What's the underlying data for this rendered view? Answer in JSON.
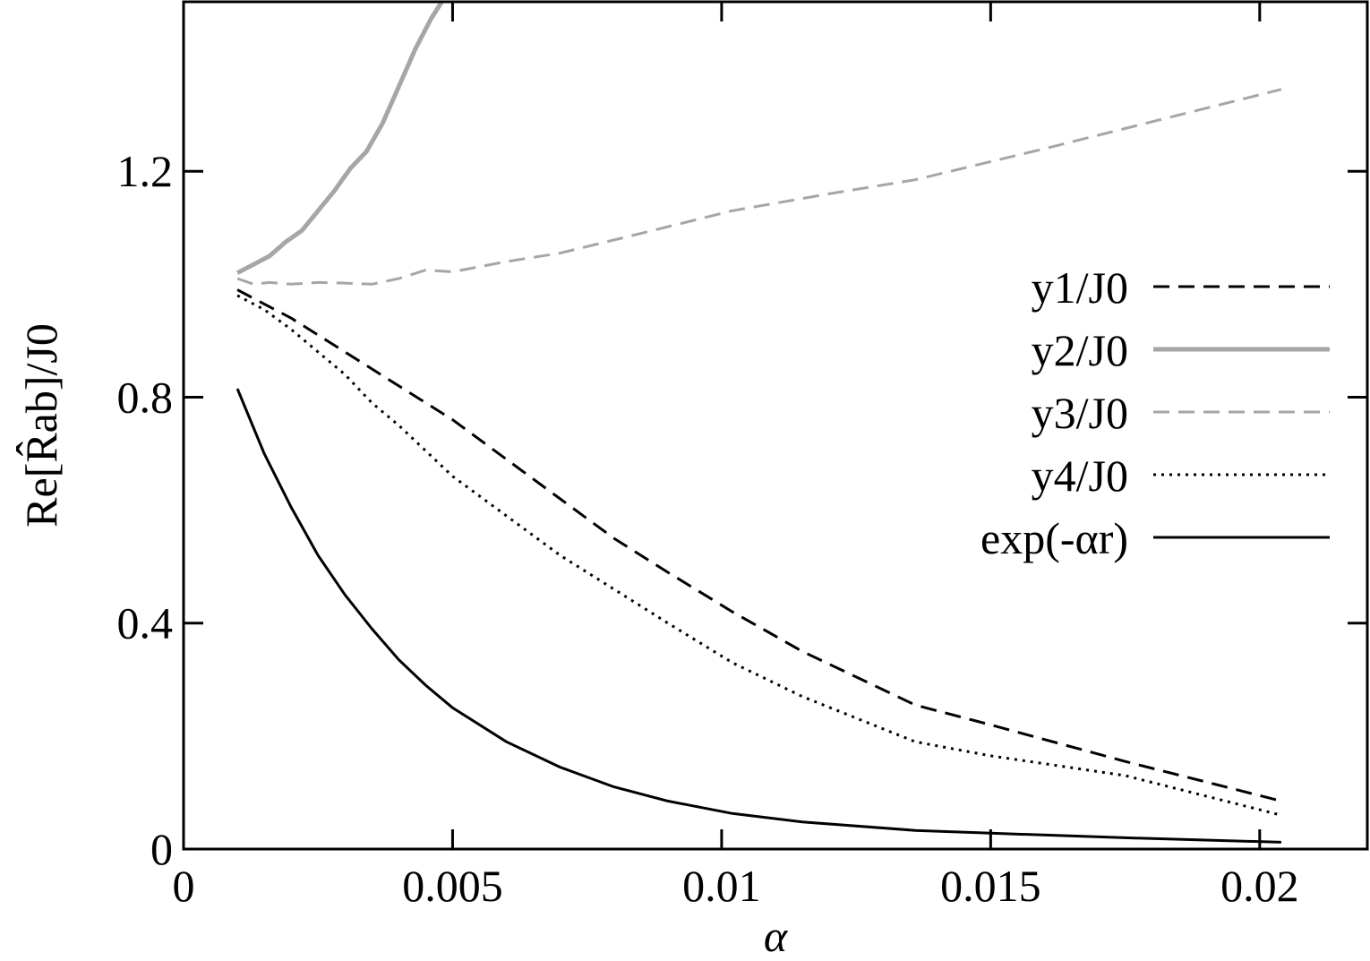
{
  "chart_data": {
    "type": "line",
    "title": "",
    "xlabel": "α",
    "ylabel": "Re[R̂ab]/J0",
    "xlim": [
      0,
      0.022
    ],
    "ylim": [
      0,
      1.5
    ],
    "x_ticks": [
      0,
      0.005,
      0.01,
      0.015,
      0.02
    ],
    "x_tick_labels": [
      "0",
      "0.005",
      "0.01",
      "0.015",
      "0.02"
    ],
    "y_ticks": [
      0,
      0.4,
      0.8,
      1.2
    ],
    "y_tick_labels": [
      "0",
      "0.4",
      "0.8",
      "1.2"
    ],
    "grid": false,
    "legend_position": "right",
    "series": [
      {
        "name": "y1/J0",
        "color": "#000000",
        "dash": "dashed",
        "x": [
          0.001,
          0.0015,
          0.002,
          0.003,
          0.004,
          0.005,
          0.006,
          0.007,
          0.008,
          0.009,
          0.0102,
          0.0115,
          0.0136,
          0.015,
          0.0175,
          0.0204
        ],
        "y": [
          0.99,
          0.965,
          0.94,
          0.88,
          0.82,
          0.76,
          0.69,
          0.62,
          0.55,
          0.49,
          0.42,
          0.35,
          0.255,
          0.22,
          0.155,
          0.085
        ]
      },
      {
        "name": "y2/J0",
        "color": "#a6a6a6",
        "dash": "solid",
        "x": [
          0.001,
          0.0013,
          0.0016,
          0.0019,
          0.0022,
          0.0025,
          0.0028,
          0.0031,
          0.0034,
          0.0037,
          0.004,
          0.0043,
          0.0046,
          0.0048
        ],
        "y": [
          1.02,
          1.035,
          1.05,
          1.075,
          1.095,
          1.13,
          1.165,
          1.205,
          1.235,
          1.285,
          1.35,
          1.415,
          1.47,
          1.5
        ]
      },
      {
        "name": "y3/J0",
        "color": "#a6a6a6",
        "dash": "dashed",
        "x": [
          0.001,
          0.0013,
          0.0016,
          0.002,
          0.0025,
          0.003,
          0.0035,
          0.004,
          0.0045,
          0.005,
          0.006,
          0.007,
          0.0085,
          0.0102,
          0.012,
          0.0136,
          0.016,
          0.0204
        ],
        "y": [
          1.01,
          1.0,
          1.003,
          1.0,
          1.003,
          1.002,
          1.0,
          1.01,
          1.025,
          1.022,
          1.04,
          1.055,
          1.09,
          1.13,
          1.16,
          1.185,
          1.24,
          1.345
        ]
      },
      {
        "name": "y4/J0",
        "color": "#000000",
        "dash": "dotted",
        "x": [
          0.001,
          0.0015,
          0.002,
          0.0025,
          0.003,
          0.0035,
          0.004,
          0.005,
          0.006,
          0.007,
          0.008,
          0.009,
          0.0102,
          0.0115,
          0.0136,
          0.015,
          0.0175,
          0.0204
        ],
        "y": [
          0.98,
          0.955,
          0.92,
          0.88,
          0.84,
          0.79,
          0.75,
          0.66,
          0.59,
          0.52,
          0.46,
          0.4,
          0.33,
          0.27,
          0.19,
          0.165,
          0.13,
          0.06
        ]
      },
      {
        "name": "exp(-αr)",
        "color": "#000000",
        "dash": "solid",
        "x": [
          0.001,
          0.0015,
          0.002,
          0.0025,
          0.003,
          0.0035,
          0.004,
          0.0045,
          0.005,
          0.006,
          0.007,
          0.008,
          0.009,
          0.0102,
          0.0115,
          0.0136,
          0.015,
          0.0175,
          0.0204
        ],
        "y": [
          0.815,
          0.7,
          0.605,
          0.52,
          0.45,
          0.39,
          0.335,
          0.29,
          0.25,
          0.19,
          0.145,
          0.11,
          0.085,
          0.063,
          0.048,
          0.033,
          0.028,
          0.02,
          0.012
        ]
      }
    ]
  }
}
